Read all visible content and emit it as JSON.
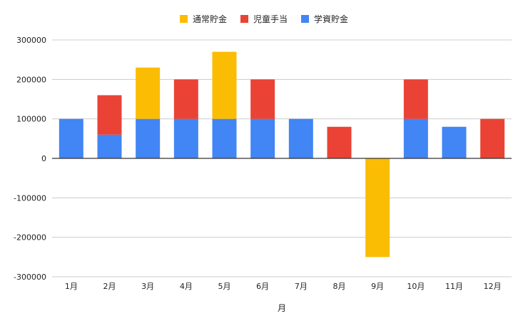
{
  "chart_data": {
    "type": "bar",
    "stacked": true,
    "title": "",
    "xlabel": "月",
    "ylabel": "",
    "ylim": [
      -300000,
      300000
    ],
    "yticks": [
      "300000",
      "200000",
      "100000",
      "0",
      "-100000",
      "-200000",
      "-300000"
    ],
    "ytick_values": [
      300000,
      200000,
      100000,
      0,
      -100000,
      -200000,
      -300000
    ],
    "grid": true,
    "legend_position": "top",
    "categories": [
      "1月",
      "2月",
      "3月",
      "4月",
      "5月",
      "6月",
      "7月",
      "8月",
      "9月",
      "10月",
      "11月",
      "12月"
    ],
    "series": [
      {
        "name": "学資貯金",
        "color": "#4285f4",
        "values": [
          100000,
          60000,
          100000,
          100000,
          100000,
          100000,
          100000,
          0,
          0,
          100000,
          80000,
          0
        ]
      },
      {
        "name": "児童手当",
        "color": "#ea4335",
        "values": [
          0,
          100000,
          0,
          100000,
          0,
          100000,
          0,
          80000,
          0,
          100000,
          0,
          100000
        ]
      },
      {
        "name": "通常貯金",
        "color": "#fbbc04",
        "values": [
          0,
          0,
          130000,
          0,
          170000,
          0,
          0,
          0,
          -250000,
          0,
          0,
          0
        ]
      }
    ],
    "legend_order": [
      2,
      1,
      0
    ]
  }
}
